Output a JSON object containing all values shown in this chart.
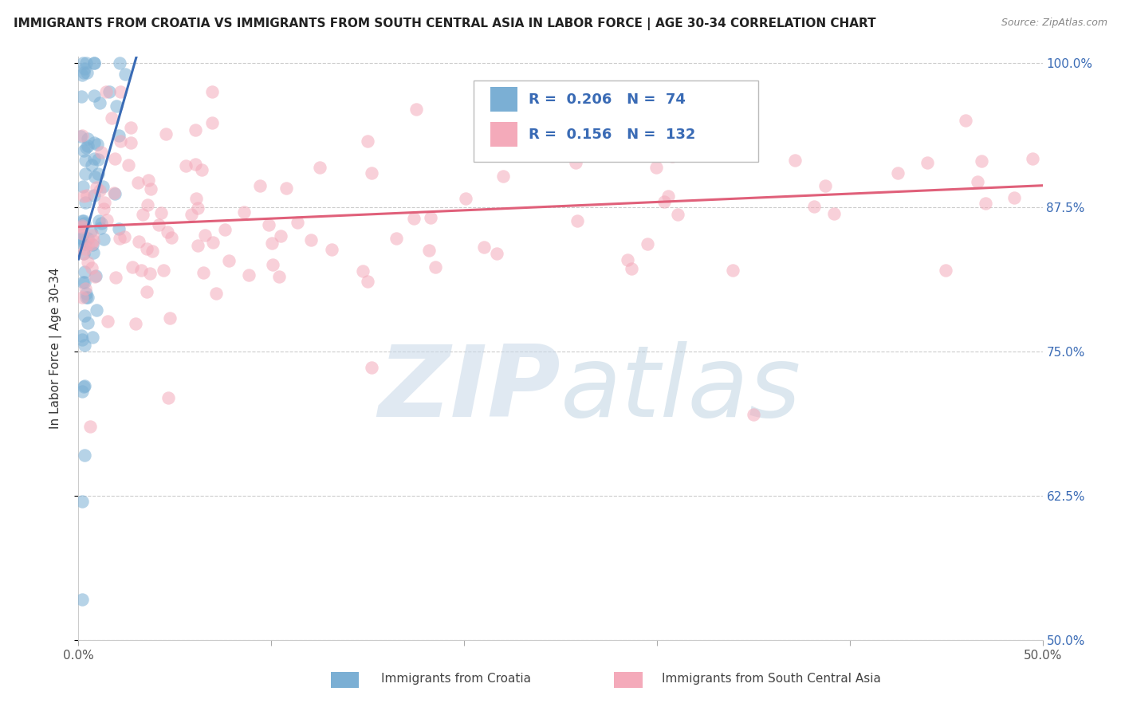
{
  "title": "IMMIGRANTS FROM CROATIA VS IMMIGRANTS FROM SOUTH CENTRAL ASIA IN LABOR FORCE | AGE 30-34 CORRELATION CHART",
  "source": "Source: ZipAtlas.com",
  "ylabel": "In Labor Force | Age 30-34",
  "x_min": 0.0,
  "x_max": 0.5,
  "y_min": 0.5,
  "y_max": 1.005,
  "y_ticks": [
    0.5,
    0.625,
    0.75,
    0.875,
    1.0
  ],
  "y_tick_labels": [
    "50.0%",
    "62.5%",
    "75.0%",
    "87.5%",
    "100.0%"
  ],
  "blue_R": 0.206,
  "blue_N": 74,
  "pink_R": 0.156,
  "pink_N": 132,
  "blue_color": "#7BAFD4",
  "pink_color": "#F4AABA",
  "blue_line_color": "#3A6BB5",
  "pink_line_color": "#E0607A",
  "legend1_label": "Immigrants from Croatia",
  "legend2_label": "Immigrants from South Central Asia",
  "watermark": "ZIPatlas"
}
